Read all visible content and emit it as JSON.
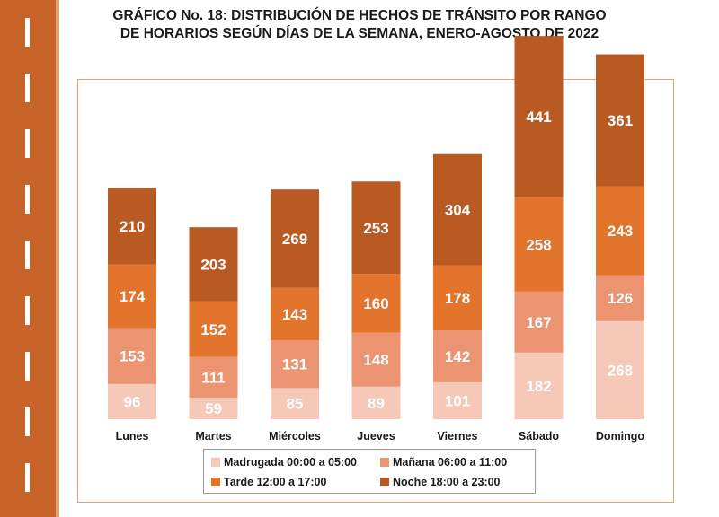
{
  "title": {
    "line1": "GRÁFICO No. 18: DISTRIBUCIÓN DE HECHOS DE TRÁNSITO POR RANGO",
    "line2": "DE HORARIOS SEGÚN DÍAS DE LA SEMANA, ENERO-AGOSTO DE 2022"
  },
  "chart_data": {
    "type": "bar",
    "stacked": true,
    "categories": [
      "Lunes",
      "Martes",
      "Miércoles",
      "Jueves",
      "Viernes",
      "Sábado",
      "Domingo"
    ],
    "series": [
      {
        "name": "Madrugada 00:00 a 05:00",
        "values": [
          96,
          59,
          85,
          89,
          101,
          182,
          268
        ],
        "color": "#f5c8b8"
      },
      {
        "name": "Mañana 06:00 a 11:00",
        "values": [
          153,
          111,
          131,
          148,
          142,
          167,
          126
        ],
        "color": "#ec9472"
      },
      {
        "name": "Tarde 12:00 a 17:00",
        "values": [
          174,
          152,
          143,
          160,
          178,
          258,
          243
        ],
        "color": "#e2742c"
      },
      {
        "name": "Noche 18:00 a 23:00",
        "values": [
          210,
          203,
          269,
          253,
          304,
          441,
          361
        ],
        "color": "#b85a22"
      }
    ],
    "legend_position": "bottom",
    "grid": false
  }
}
